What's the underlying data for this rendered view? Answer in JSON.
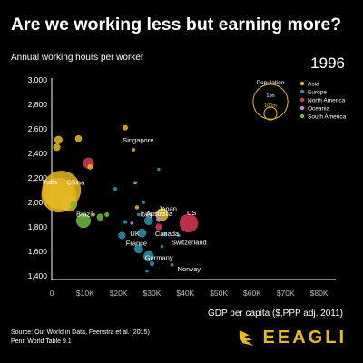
{
  "title": "Are we working less but earning more?",
  "subtitle": "Annual working hours per worker",
  "year": "1996",
  "xlabel": "GDP per capita ($,PPP adj. 2011)",
  "source_line1": "Source: Our World in Data, Feenstra et al. (2015)",
  "source_line2": "Penn World Table 9.1",
  "logo_text": "EEAGLI",
  "logo_icon": "eagle-icon",
  "chart_data": {
    "type": "scatter",
    "title": "Are we working less but earning more?",
    "xlabel": "GDP per capita ($,PPP adj. 2011)",
    "ylabel": "Annual working hours per worker",
    "xlim": [
      0,
      85000
    ],
    "ylim": [
      1400,
      3000
    ],
    "xticks": [
      0,
      10000,
      20000,
      30000,
      40000,
      50000,
      60000,
      70000,
      80000
    ],
    "xtick_labels": [
      "0",
      "$10K",
      "$20K",
      "$30K",
      "$40K",
      "$50K",
      "$60K",
      "$70K",
      "$80K"
    ],
    "yticks": [
      1400,
      1600,
      1800,
      2000,
      2200,
      2400,
      2600,
      2800,
      3000
    ],
    "ytick_labels": [
      "1,400",
      "1,600",
      "1,800",
      "2,000",
      "2,200",
      "2,400",
      "2,600",
      "2,800",
      "3,000"
    ],
    "grid": false,
    "legend": {
      "placement": "top-right",
      "population_title": "Population",
      "size_labels": [
        "1bn",
        "100m"
      ],
      "entries": [
        {
          "name": "Asia",
          "color": "#e8b823"
        },
        {
          "name": "Europe",
          "color": "#2d93ad"
        },
        {
          "name": "North America",
          "color": "#d93a55"
        },
        {
          "name": "Oceania",
          "color": "#c77ed6"
        },
        {
          "name": "South America",
          "color": "#6cbb3c"
        }
      ]
    },
    "points": [
      {
        "label": "China",
        "x": 2900,
        "y": 2100,
        "pop": 1220,
        "region": "Asia"
      },
      {
        "label": "India",
        "x": 2100,
        "y": 2060,
        "pop": 970,
        "region": "Asia"
      },
      {
        "label": "",
        "x": 5200,
        "y": 1990,
        "pop": 200,
        "region": "Asia"
      },
      {
        "label": "",
        "x": 1500,
        "y": 2450,
        "pop": 40,
        "region": "Asia"
      },
      {
        "label": "",
        "x": 2000,
        "y": 2510,
        "pop": 50,
        "region": "Asia"
      },
      {
        "label": "",
        "x": 8000,
        "y": 2520,
        "pop": 35,
        "region": "Asia"
      },
      {
        "label": "",
        "x": 11500,
        "y": 2290,
        "pop": 20,
        "region": "Asia"
      },
      {
        "label": "",
        "x": 22000,
        "y": 2610,
        "pop": 20,
        "region": "Asia"
      },
      {
        "label": "",
        "x": 25500,
        "y": 1960,
        "pop": 10,
        "region": "Asia"
      },
      {
        "label": "Singapore",
        "x": 24500,
        "y": 2430,
        "pop": 4,
        "region": "Asia"
      },
      {
        "label": "Japan",
        "x": 33000,
        "y": 1900,
        "pop": 126,
        "region": "Asia"
      },
      {
        "label": "",
        "x": 25000,
        "y": 2160,
        "pop": 6,
        "region": "Asia"
      },
      {
        "label": "",
        "x": 12500,
        "y": 1900,
        "pop": 6,
        "region": "Asia"
      },
      {
        "label": "US",
        "x": 41000,
        "y": 1830,
        "pop": 270,
        "region": "North America"
      },
      {
        "label": "",
        "x": 11000,
        "y": 2320,
        "pop": 95,
        "region": "North America"
      },
      {
        "label": "Canada",
        "x": 32000,
        "y": 1800,
        "pop": 30,
        "region": "North America"
      },
      {
        "label": "Brazil",
        "x": 9500,
        "y": 1850,
        "pop": 165,
        "region": "South America"
      },
      {
        "label": "",
        "x": 6500,
        "y": 1980,
        "pop": 36,
        "region": "South America"
      },
      {
        "label": "",
        "x": 14500,
        "y": 1880,
        "pop": 35,
        "region": "South America"
      },
      {
        "label": "",
        "x": 16500,
        "y": 1900,
        "pop": 15,
        "region": "South America"
      },
      {
        "label": "Australia",
        "x": 32000,
        "y": 1860,
        "pop": 18,
        "region": "Oceania"
      },
      {
        "label": "",
        "x": 24000,
        "y": 1830,
        "pop": 4,
        "region": "Oceania"
      },
      {
        "label": "Italy",
        "x": 29000,
        "y": 1850,
        "pop": 57,
        "region": "Europe"
      },
      {
        "label": "UK",
        "x": 27000,
        "y": 1750,
        "pop": 58,
        "region": "Europe"
      },
      {
        "label": "France",
        "x": 26000,
        "y": 1620,
        "pop": 58,
        "region": "Europe"
      },
      {
        "label": "Germany",
        "x": 29000,
        "y": 1560,
        "pop": 82,
        "region": "Europe"
      },
      {
        "label": "Norway",
        "x": 36000,
        "y": 1490,
        "pop": 4,
        "region": "Europe"
      },
      {
        "label": "Switzerland",
        "x": 38000,
        "y": 1730,
        "pop": 7,
        "region": "Europe"
      },
      {
        "label": "",
        "x": 30000,
        "y": 1500,
        "pop": 16,
        "region": "Europe"
      },
      {
        "label": "",
        "x": 28500,
        "y": 1440,
        "pop": 5,
        "region": "Europe"
      },
      {
        "label": "",
        "x": 21000,
        "y": 1730,
        "pop": 40,
        "region": "Europe"
      },
      {
        "label": "",
        "x": 22000,
        "y": 1840,
        "pop": 10,
        "region": "Europe"
      },
      {
        "label": "",
        "x": 34000,
        "y": 1740,
        "pop": 10,
        "region": "Europe"
      },
      {
        "label": "",
        "x": 19000,
        "y": 2110,
        "pop": 10,
        "region": "Europe"
      },
      {
        "label": "",
        "x": 32000,
        "y": 2270,
        "pop": 5,
        "region": "Europe"
      },
      {
        "label": "",
        "x": 27500,
        "y": 2000,
        "pop": 5,
        "region": "Europe"
      },
      {
        "label": "",
        "x": 26000,
        "y": 1900,
        "pop": 8,
        "region": "Europe"
      },
      {
        "label": "",
        "x": 33000,
        "y": 1640,
        "pop": 5,
        "region": "Europe"
      }
    ]
  }
}
